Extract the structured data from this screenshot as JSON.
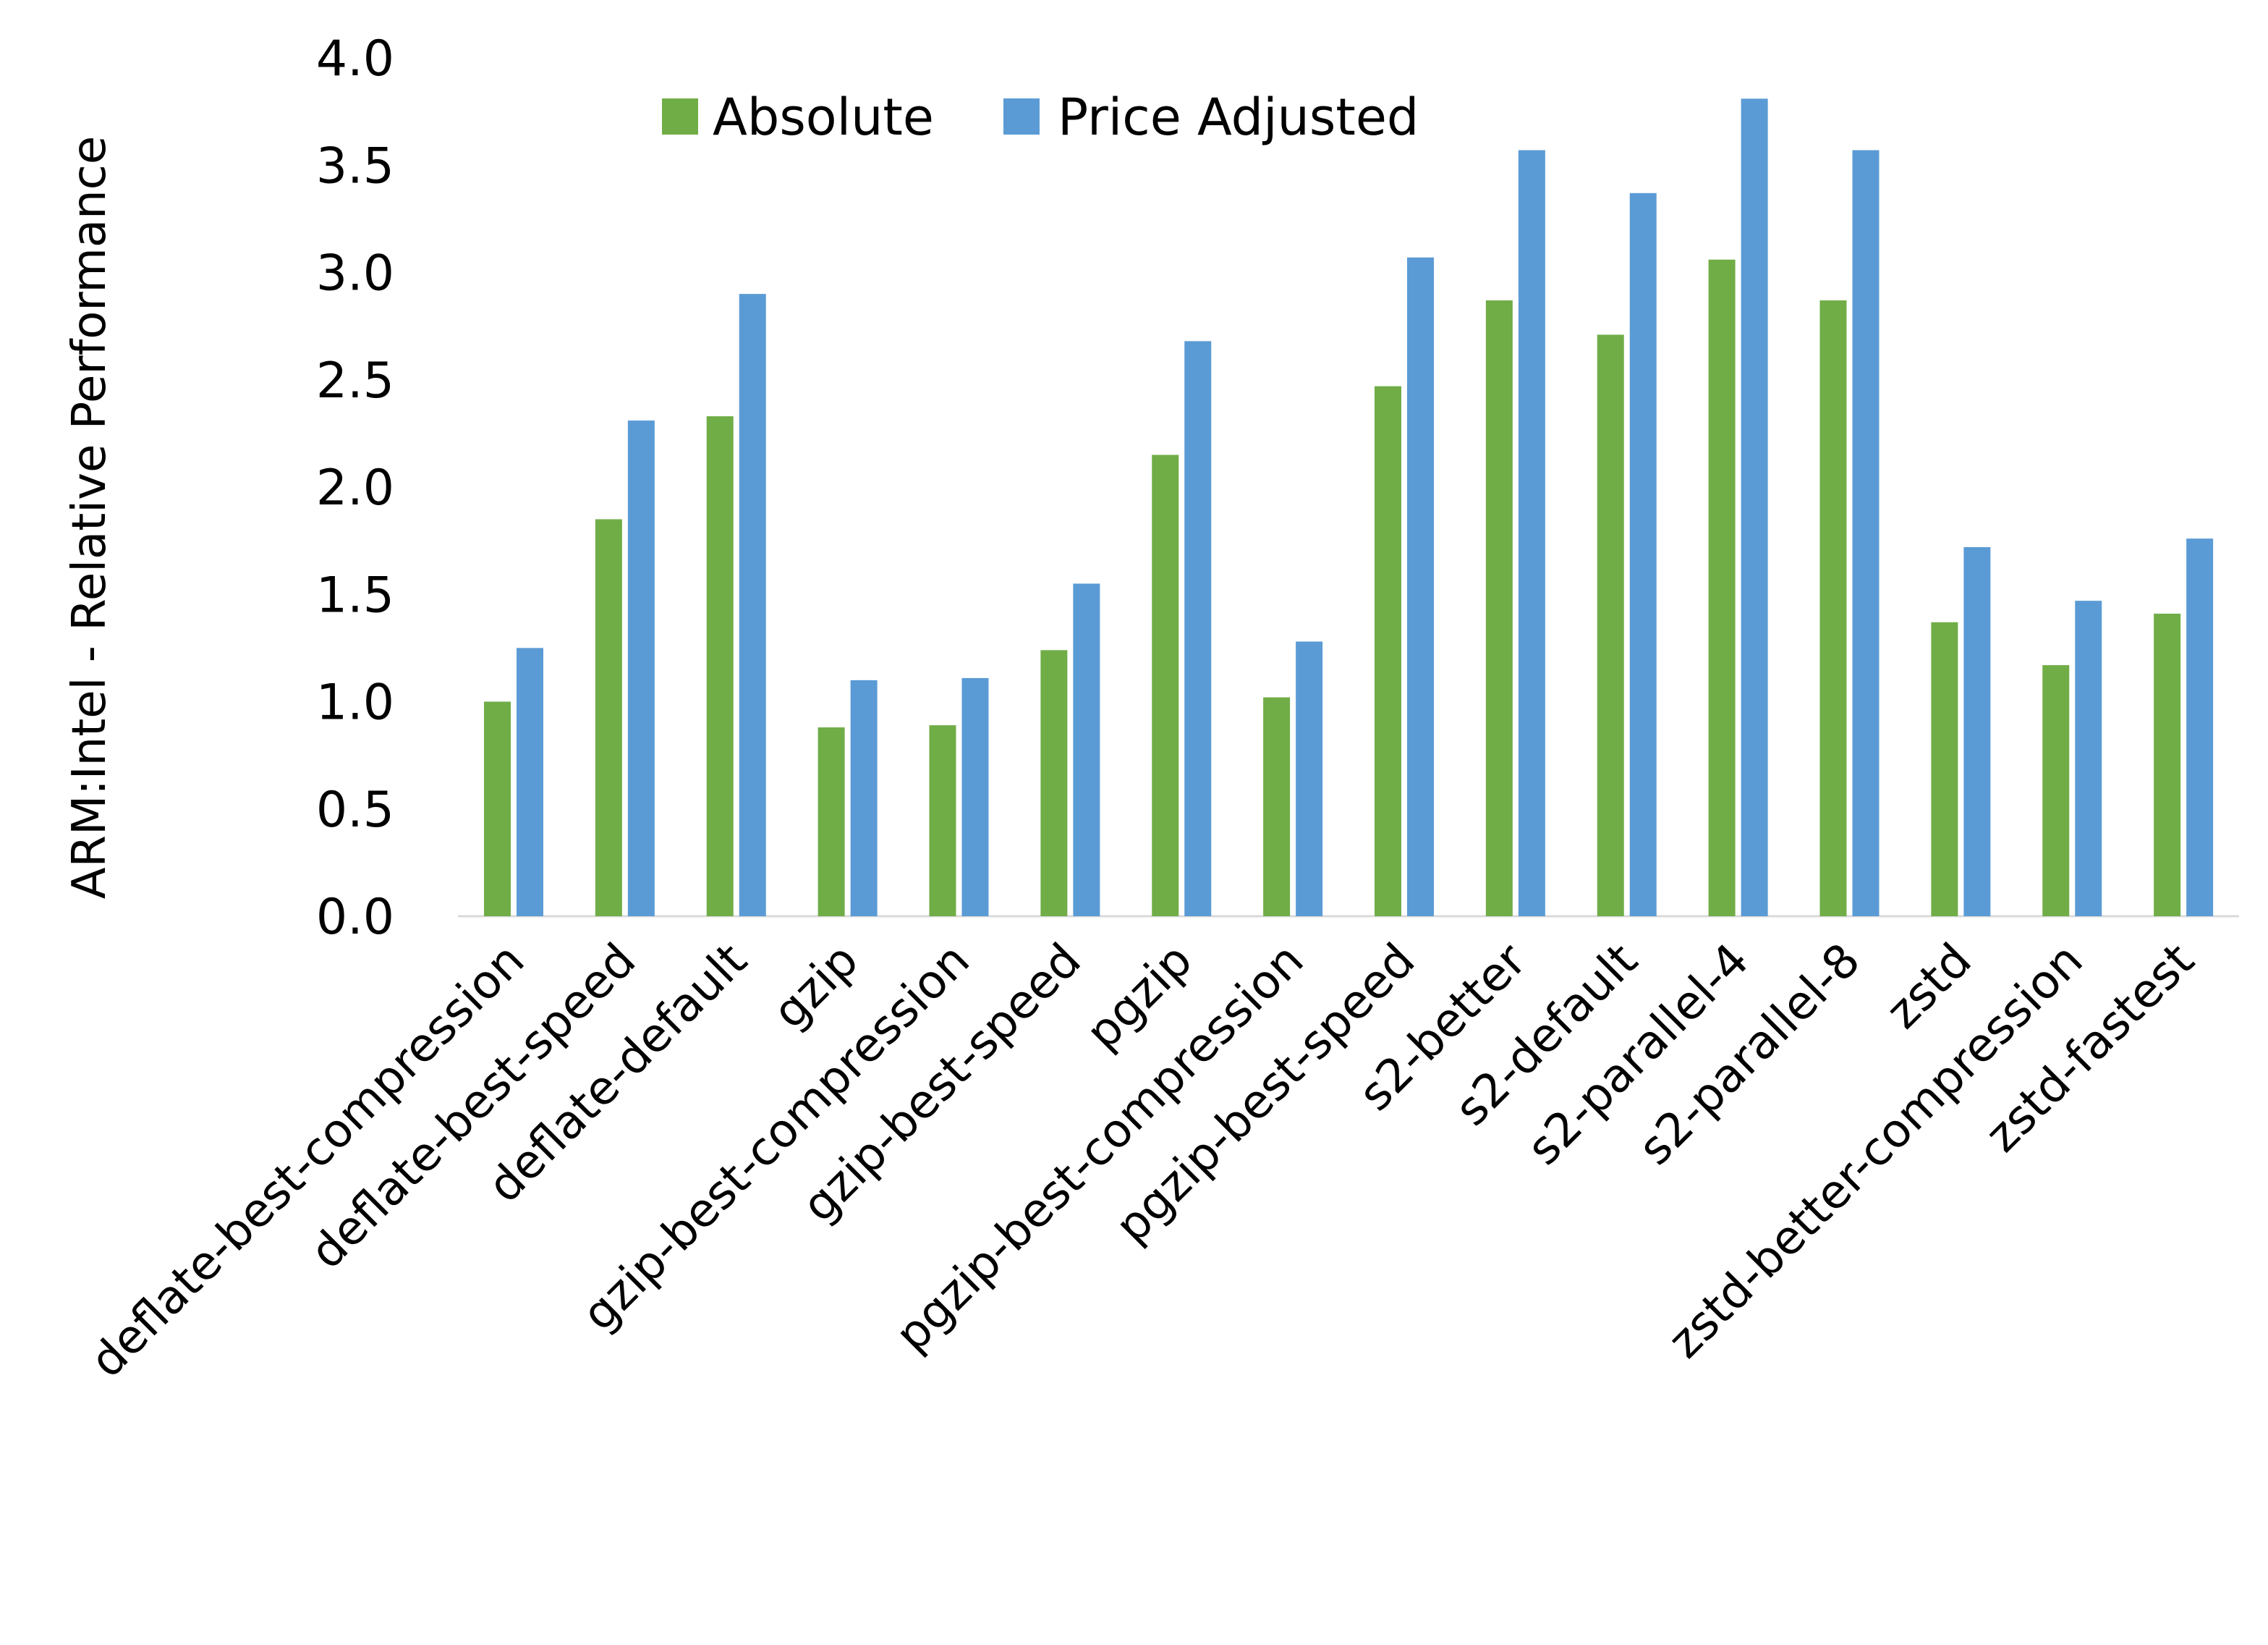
{
  "chart_data": {
    "type": "bar",
    "title": "",
    "xlabel": "",
    "ylabel": "ARM:Intel - Relative Performance",
    "ylim": [
      0,
      4.0
    ],
    "yticks": [
      "0.0",
      "0.5",
      "1.0",
      "1.5",
      "2.0",
      "2.5",
      "3.0",
      "3.5",
      "4.0"
    ],
    "grid": false,
    "legend_position": "top",
    "categories": [
      "deflate-best-compression",
      "deflate-best-speed",
      "deflate-default",
      "gzip",
      "gzip-best-compression",
      "gzip-best-speed",
      "pgzip",
      "pgzip-best-compression",
      "pgzip-best-speed",
      "s2-better",
      "s2-default",
      "s2-parallel-4",
      "s2-parallel-8",
      "zstd",
      "zstd-better-compression",
      "zstd-fastest"
    ],
    "series": [
      {
        "name": "Absolute",
        "color": "#70AD47",
        "values": [
          1.0,
          1.85,
          2.33,
          0.88,
          0.89,
          1.24,
          2.15,
          1.02,
          2.47,
          2.87,
          2.71,
          3.06,
          2.87,
          1.37,
          1.17,
          1.41
        ]
      },
      {
        "name": "Price Adjusted",
        "color": "#5B9BD5",
        "values": [
          1.25,
          2.31,
          2.9,
          1.1,
          1.11,
          1.55,
          2.68,
          1.28,
          3.07,
          3.57,
          3.37,
          3.81,
          3.57,
          1.72,
          1.47,
          1.76
        ]
      }
    ]
  }
}
